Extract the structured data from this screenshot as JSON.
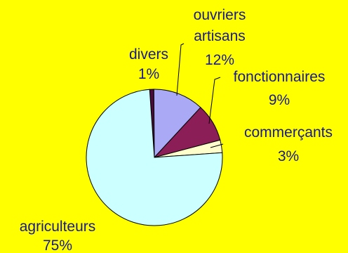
{
  "chart_data": {
    "type": "pie",
    "title": "",
    "background": "#FFFF00",
    "label_color": "#1A1A8C",
    "slices": [
      {
        "label": "divers",
        "percent_text": "1%",
        "value": 1,
        "color": "#4B0A3C"
      },
      {
        "label": "ouvriers artisans",
        "label_lines": [
          "ouvriers",
          "artisans"
        ],
        "percent_text": "12%",
        "value": 12,
        "color": "#A9A9F5"
      },
      {
        "label": "fonctionnaires",
        "percent_text": "9%",
        "value": 9,
        "color": "#8B1E57"
      },
      {
        "label": "commerçants",
        "percent_text": "3%",
        "value": 3,
        "color": "#FFFFCC"
      },
      {
        "label": "agriculteurs",
        "percent_text": "75%",
        "value": 75,
        "color": "#CCFFFF"
      }
    ]
  }
}
